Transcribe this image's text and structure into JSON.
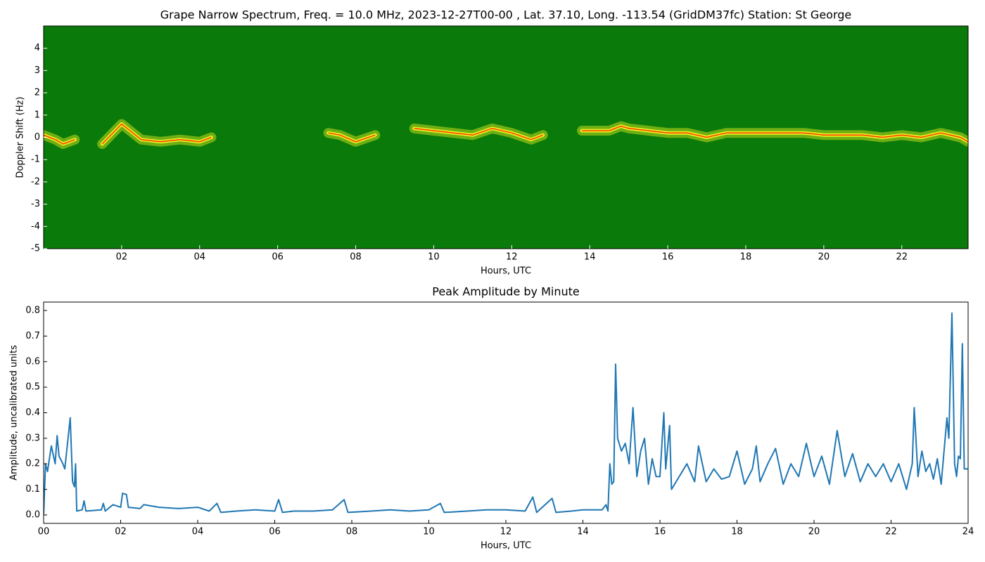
{
  "chart_data": [
    {
      "type": "spectrogram",
      "title": "Grape Narrow Spectrum, Freq. = 10.0 MHz, 2023-12-27T00-00 , Lat.  37.10, Long. -113.54 (GridDM37fc) Station: St George",
      "xlabel": "Hours, UTC",
      "ylabel": "Doppler Shift (Hz)",
      "background": "#0a7a0a",
      "glow_color": "#e8f020",
      "color": "#ff3a00",
      "x": [
        0,
        0.3,
        0.5,
        0.8,
        1.0,
        1.5,
        2.0,
        2.5,
        3.0,
        3.5,
        4.0,
        4.3,
        4.5,
        7.3,
        7.6,
        8.0,
        8.5,
        9.0,
        9.5,
        10.0,
        10.5,
        11.0,
        11.5,
        12.0,
        12.5,
        12.8,
        13.0,
        13.8,
        14.5,
        14.8,
        15.0,
        15.5,
        16.0,
        16.5,
        17.0,
        17.5,
        18.0,
        18.5,
        19.0,
        19.5,
        20.0,
        20.5,
        21.0,
        21.5,
        22.0,
        22.5,
        23.0,
        23.5,
        23.7
      ],
      "values": [
        0.1,
        -0.1,
        -0.3,
        -0.1,
        null,
        -0.3,
        0.6,
        -0.1,
        -0.2,
        -0.1,
        -0.2,
        0,
        null,
        0.2,
        0.1,
        -0.2,
        0.1,
        null,
        0.4,
        0.3,
        0.2,
        0.1,
        0.4,
        0.2,
        -0.1,
        0.1,
        null,
        0.3,
        0.3,
        0.5,
        0.4,
        0.3,
        0.2,
        0.2,
        0,
        0.2,
        0.2,
        0.2,
        0.2,
        0.2,
        0.1,
        0.1,
        0.1,
        0,
        0.1,
        0,
        0.2,
        0,
        -0.2
      ],
      "xlim": [
        0,
        23.7
      ],
      "xticks": [
        {
          "value": 2,
          "label": "02"
        },
        {
          "value": 4,
          "label": "04"
        },
        {
          "value": 6,
          "label": "06"
        },
        {
          "value": 8,
          "label": "08"
        },
        {
          "value": 10,
          "label": "10"
        },
        {
          "value": 12,
          "label": "12"
        },
        {
          "value": 14,
          "label": "14"
        },
        {
          "value": 16,
          "label": "16"
        },
        {
          "value": 18,
          "label": "18"
        },
        {
          "value": 20,
          "label": "20"
        },
        {
          "value": 22,
          "label": "22"
        }
      ],
      "ylim": [
        -5,
        5
      ],
      "yticks": [
        -5,
        -4,
        -3,
        -2,
        -1,
        0,
        1,
        2,
        3,
        4
      ]
    },
    {
      "type": "line",
      "title": "Peak Amplitude by Minute",
      "xlabel": "Hours, UTC",
      "ylabel": "Amplitude, uncalibrated units",
      "color": "#1f77b4",
      "x": [
        0,
        0.05,
        0.1,
        0.15,
        0.2,
        0.3,
        0.35,
        0.4,
        0.5,
        0.55,
        0.6,
        0.69,
        0.75,
        0.8,
        0.83,
        0.86,
        1.0,
        1.05,
        1.1,
        1.5,
        1.55,
        1.6,
        1.8,
        2.0,
        2.05,
        2.15,
        2.2,
        2.5,
        2.6,
        3.0,
        3.5,
        4.0,
        4.3,
        4.5,
        4.6,
        5.0,
        5.5,
        6.0,
        6.1,
        6.2,
        6.5,
        7.0,
        7.5,
        7.8,
        7.9,
        8.5,
        9.0,
        9.5,
        10.0,
        10.3,
        10.4,
        11.0,
        11.5,
        12.0,
        12.5,
        12.7,
        12.8,
        13.2,
        13.3,
        13.7,
        14.0,
        14.5,
        14.6,
        14.65,
        14.7,
        14.75,
        14.8,
        14.85,
        14.9,
        15.0,
        15.1,
        15.2,
        15.3,
        15.4,
        15.5,
        15.6,
        15.7,
        15.8,
        15.9,
        16.0,
        16.1,
        16.15,
        16.25,
        16.3,
        16.5,
        16.7,
        16.9,
        17.0,
        17.2,
        17.4,
        17.6,
        17.8,
        18.0,
        18.2,
        18.4,
        18.5,
        18.6,
        18.8,
        19.0,
        19.2,
        19.4,
        19.6,
        19.8,
        20.0,
        20.2,
        20.4,
        20.6,
        20.8,
        21.0,
        21.2,
        21.4,
        21.6,
        21.8,
        22.0,
        22.2,
        22.4,
        22.55,
        22.6,
        22.7,
        22.8,
        22.9,
        23.0,
        23.1,
        23.2,
        23.3,
        23.45,
        23.5,
        23.58,
        23.65,
        23.7,
        23.75,
        23.8,
        23.85,
        23.9,
        24.0
      ],
      "values": [
        0.0,
        0.2,
        0.17,
        0.22,
        0.27,
        0.2,
        0.31,
        0.23,
        0.2,
        0.18,
        0.25,
        0.38,
        0.13,
        0.11,
        0.2,
        0.015,
        0.02,
        0.055,
        0.015,
        0.02,
        0.045,
        0.015,
        0.04,
        0.03,
        0.085,
        0.08,
        0.03,
        0.025,
        0.04,
        0.03,
        0.025,
        0.03,
        0.015,
        0.045,
        0.01,
        0.015,
        0.02,
        0.015,
        0.06,
        0.01,
        0.015,
        0.015,
        0.02,
        0.06,
        0.01,
        0.015,
        0.02,
        0.015,
        0.02,
        0.045,
        0.01,
        0.015,
        0.02,
        0.02,
        0.015,
        0.07,
        0.01,
        0.065,
        0.01,
        0.015,
        0.02,
        0.02,
        0.04,
        0.015,
        0.2,
        0.12,
        0.13,
        0.59,
        0.3,
        0.25,
        0.28,
        0.2,
        0.42,
        0.15,
        0.25,
        0.3,
        0.12,
        0.22,
        0.15,
        0.15,
        0.4,
        0.18,
        0.35,
        0.1,
        0.15,
        0.2,
        0.13,
        0.27,
        0.13,
        0.18,
        0.14,
        0.15,
        0.25,
        0.12,
        0.18,
        0.27,
        0.13,
        0.2,
        0.26,
        0.12,
        0.2,
        0.15,
        0.28,
        0.15,
        0.23,
        0.12,
        0.33,
        0.15,
        0.24,
        0.13,
        0.2,
        0.15,
        0.2,
        0.13,
        0.2,
        0.1,
        0.2,
        0.42,
        0.15,
        0.25,
        0.17,
        0.2,
        0.14,
        0.22,
        0.12,
        0.38,
        0.3,
        0.79,
        0.2,
        0.15,
        0.23,
        0.22,
        0.67,
        0.18,
        0.18
      ],
      "xlim": [
        0,
        24
      ],
      "xticks": [
        {
          "value": 0,
          "label": "00"
        },
        {
          "value": 2,
          "label": "02"
        },
        {
          "value": 4,
          "label": "04"
        },
        {
          "value": 6,
          "label": "06"
        },
        {
          "value": 8,
          "label": "08"
        },
        {
          "value": 10,
          "label": "10"
        },
        {
          "value": 12,
          "label": "12"
        },
        {
          "value": 14,
          "label": "14"
        },
        {
          "value": 16,
          "label": "16"
        },
        {
          "value": 18,
          "label": "18"
        },
        {
          "value": 20,
          "label": "20"
        },
        {
          "value": 22,
          "label": "22"
        },
        {
          "value": 24,
          "label": "24"
        }
      ],
      "ylim": [
        -0.033,
        0.833
      ],
      "yticks": [
        {
          "value": 0,
          "label": "0.0"
        },
        0.1,
        0.2,
        0.3,
        0.4,
        0.5,
        0.6,
        0.7,
        0.8
      ]
    }
  ]
}
